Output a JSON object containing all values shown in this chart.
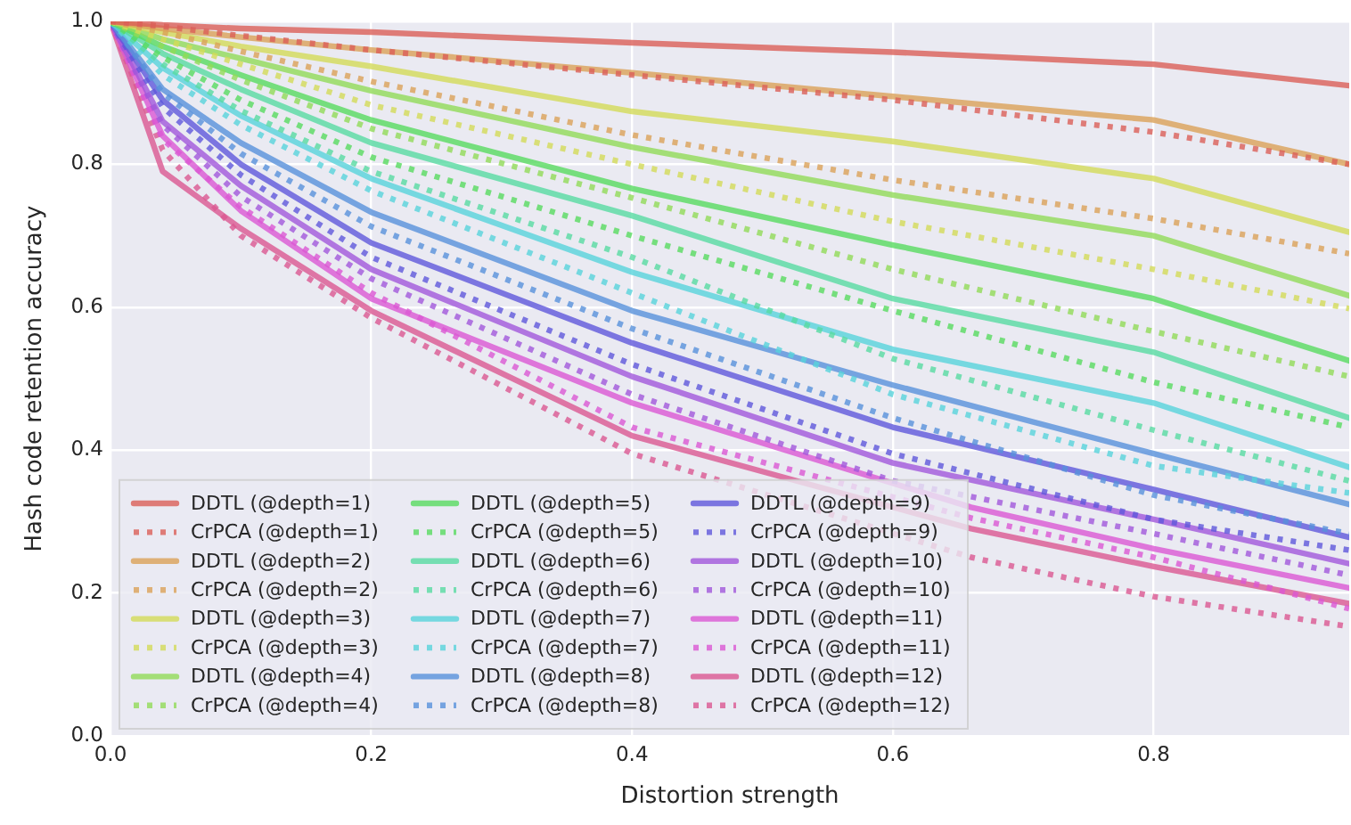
{
  "chart_data": {
    "type": "line",
    "xlabel": "Distortion strength",
    "ylabel": "Hash code retention accuracy",
    "x": [
      0,
      0.04,
      0.1,
      0.2,
      0.4,
      0.6,
      0.8,
      0.95
    ],
    "xlim": [
      0,
      0.95
    ],
    "xticks": [
      {
        "value": 0,
        "label": "0.0"
      },
      0.2,
      0.4,
      0.6,
      0.8
    ],
    "ylim": [
      0,
      1
    ],
    "yticks": [
      {
        "value": 0,
        "label": "0.0"
      },
      0.2,
      0.4,
      0.6,
      0.8,
      {
        "value": 1,
        "label": "1.0"
      }
    ],
    "grid": true,
    "legend": "bottom left",
    "marker": "none",
    "series": [
      {
        "name": "DDTL (@depth=1)",
        "color": "#db5f57",
        "line_style": "solid",
        "values": [
          1,
          0.995,
          0.99,
          0.985,
          0.97,
          0.957,
          0.94,
          0.91
        ]
      },
      {
        "name": "CrPCA (@depth=1)",
        "color": "#db5f57",
        "line_style": "dotted",
        "values": [
          1,
          0.993,
          0.98,
          0.96,
          0.925,
          0.89,
          0.845,
          0.8
        ]
      },
      {
        "name": "DDTL (@depth=2)",
        "color": "#dba157",
        "line_style": "solid",
        "values": [
          1,
          0.99,
          0.978,
          0.96,
          0.928,
          0.895,
          0.862,
          0.8
        ]
      },
      {
        "name": "CrPCA (@depth=2)",
        "color": "#dba157",
        "line_style": "dotted",
        "values": [
          1,
          0.985,
          0.958,
          0.916,
          0.841,
          0.778,
          0.724,
          0.675
        ]
      },
      {
        "name": "DDTL (@depth=3)",
        "color": "#d3db57",
        "line_style": "solid",
        "values": [
          1,
          0.985,
          0.965,
          0.937,
          0.874,
          0.832,
          0.78,
          0.705
        ]
      },
      {
        "name": "CrPCA (@depth=3)",
        "color": "#d3db57",
        "line_style": "dotted",
        "values": [
          1,
          0.975,
          0.94,
          0.883,
          0.8,
          0.72,
          0.653,
          0.598
        ]
      },
      {
        "name": "DDTL (@depth=4)",
        "color": "#91db57",
        "line_style": "solid",
        "values": [
          1,
          0.975,
          0.948,
          0.903,
          0.824,
          0.757,
          0.7,
          0.616
        ]
      },
      {
        "name": "CrPCA (@depth=4)",
        "color": "#91db57",
        "line_style": "dotted",
        "values": [
          1,
          0.965,
          0.918,
          0.85,
          0.753,
          0.653,
          0.566,
          0.503
        ]
      },
      {
        "name": "DDTL (@depth=5)",
        "color": "#57db5f",
        "line_style": "solid",
        "values": [
          1,
          0.965,
          0.925,
          0.862,
          0.766,
          0.687,
          0.612,
          0.525
        ]
      },
      {
        "name": "CrPCA (@depth=5)",
        "color": "#57db5f",
        "line_style": "dotted",
        "values": [
          1,
          0.95,
          0.89,
          0.81,
          0.7,
          0.595,
          0.495,
          0.432
        ]
      },
      {
        "name": "DDTL (@depth=6)",
        "color": "#57dba1",
        "line_style": "solid",
        "values": [
          1,
          0.955,
          0.905,
          0.83,
          0.728,
          0.612,
          0.537,
          0.445
        ]
      },
      {
        "name": "CrPCA (@depth=6)",
        "color": "#57dba1",
        "line_style": "dotted",
        "values": [
          1,
          0.94,
          0.875,
          0.79,
          0.67,
          0.528,
          0.428,
          0.357
        ]
      },
      {
        "name": "DDTL (@depth=7)",
        "color": "#57d3db",
        "line_style": "solid",
        "values": [
          1,
          0.935,
          0.868,
          0.78,
          0.649,
          0.541,
          0.466,
          0.376
        ]
      },
      {
        "name": "CrPCA (@depth=7)",
        "color": "#57d3db",
        "line_style": "dotted",
        "values": [
          1,
          0.925,
          0.855,
          0.763,
          0.62,
          0.478,
          0.378,
          0.34
        ]
      },
      {
        "name": "DDTL (@depth=8)",
        "color": "#5791db",
        "line_style": "solid",
        "values": [
          1,
          0.905,
          0.83,
          0.733,
          0.595,
          0.491,
          0.395,
          0.324
        ]
      },
      {
        "name": "CrPCA (@depth=8)",
        "color": "#5791db",
        "line_style": "dotted",
        "values": [
          1,
          0.9,
          0.815,
          0.713,
          0.57,
          0.445,
          0.337,
          0.283
        ]
      },
      {
        "name": "DDTL (@depth=9)",
        "color": "#5f57db",
        "line_style": "solid",
        "values": [
          1,
          0.89,
          0.8,
          0.69,
          0.55,
          0.432,
          0.345,
          0.278
        ]
      },
      {
        "name": "CrPCA (@depth=9)",
        "color": "#5f57db",
        "line_style": "dotted",
        "values": [
          1,
          0.88,
          0.785,
          0.67,
          0.52,
          0.395,
          0.303,
          0.26
        ]
      },
      {
        "name": "DDTL (@depth=10)",
        "color": "#a157db",
        "line_style": "solid",
        "values": [
          1,
          0.86,
          0.77,
          0.653,
          0.503,
          0.382,
          0.303,
          0.241
        ]
      },
      {
        "name": "CrPCA (@depth=10)",
        "color": "#a157db",
        "line_style": "dotted",
        "values": [
          1,
          0.855,
          0.755,
          0.64,
          0.478,
          0.357,
          0.283,
          0.225
        ]
      },
      {
        "name": "DDTL (@depth=11)",
        "color": "#db57d3",
        "line_style": "solid",
        "x": [
          0,
          0.04,
          0.1,
          0.2,
          0.4,
          0.66,
          0.8,
          0.95
        ],
        "values": [
          1,
          0.84,
          0.735,
          0.612,
          0.466,
          0.32,
          0.262,
          0.207
        ]
      },
      {
        "name": "CrPCA (@depth=11)",
        "color": "#db57d3",
        "line_style": "dotted",
        "x": [
          0,
          0.04,
          0.1,
          0.2,
          0.4,
          0.66,
          0.8,
          0.95
        ],
        "values": [
          1,
          0.835,
          0.74,
          0.62,
          0.432,
          0.305,
          0.25,
          0.178
        ]
      },
      {
        "name": "DDTL (@depth=12)",
        "color": "#db5791",
        "line_style": "solid",
        "x": [
          0,
          0.04,
          0.1,
          0.2,
          0.4,
          0.66,
          0.8,
          0.95
        ],
        "values": [
          1,
          0.79,
          0.71,
          0.595,
          0.42,
          0.29,
          0.237,
          0.185
        ]
      },
      {
        "name": "CrPCA (@depth=12)",
        "color": "#db5791",
        "line_style": "dotted",
        "x": [
          0,
          0.04,
          0.1,
          0.2,
          0.4,
          0.66,
          0.8,
          0.95
        ],
        "values": [
          1,
          0.82,
          0.7,
          0.585,
          0.395,
          0.25,
          0.195,
          0.153
        ]
      }
    ]
  }
}
